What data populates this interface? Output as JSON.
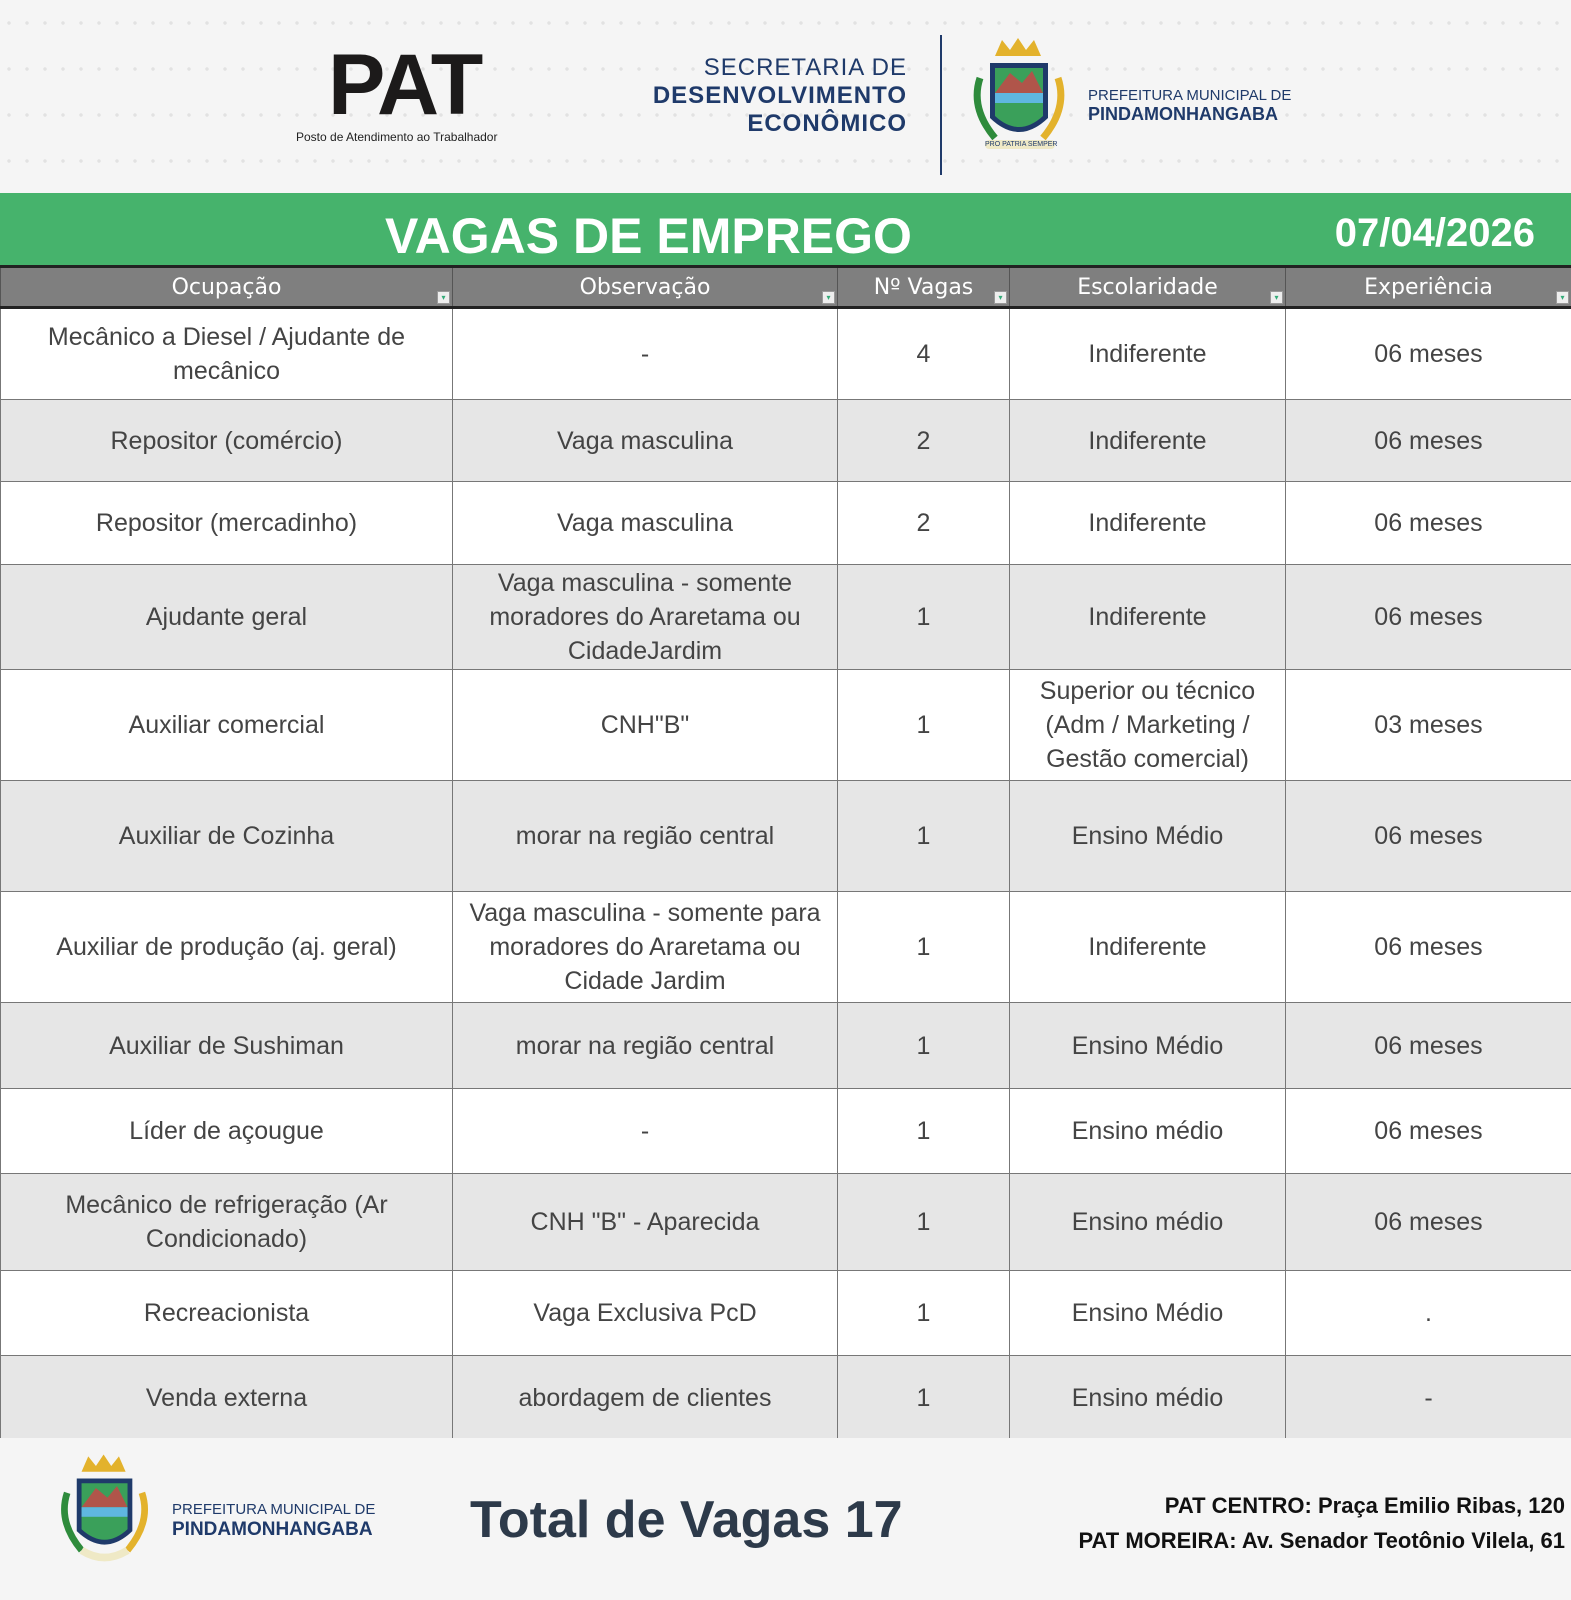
{
  "header": {
    "watermark": "Posto de Atendimento ao Trabalhador",
    "pat_logo": "PAT",
    "pat_subtitle": "Posto de Atendimento ao Trabalhador",
    "secretaria_line1": "SECRETARIA DE",
    "secretaria_line2": "DESENVOLVIMENTO",
    "secretaria_line3": "ECONÔMICO",
    "prefeitura_line1": "PREFEITURA MUNICIPAL DE",
    "prefeitura_line2": "PINDAMONHANGABA",
    "crest_motto": "PRO PATRIA SEMPER"
  },
  "banner": {
    "title": "VAGAS DE EMPREGO",
    "date": "07/04/2026",
    "color": "#46b36c"
  },
  "table": {
    "columns": [
      "Ocupação",
      "Observação",
      "Nº Vagas",
      "Escolaridade",
      "Experiência"
    ],
    "rows": [
      [
        "Mecânico a Diesel / Ajudante de mecânico",
        "-",
        "4",
        "Indiferente",
        "06 meses"
      ],
      [
        "Repositor (comércio)",
        "Vaga masculina",
        "2",
        "Indiferente",
        "06 meses"
      ],
      [
        "Repositor (mercadinho)",
        "Vaga masculina",
        "2",
        "Indiferente",
        "06 meses"
      ],
      [
        "Ajudante geral",
        "Vaga masculina - somente moradores do Araretama ou CidadeJardim",
        "1",
        "Indiferente",
        "06 meses"
      ],
      [
        "Auxiliar comercial",
        "CNH\"B\"",
        "1",
        "Superior ou técnico (Adm / Marketing / Gestão comercial)",
        "03 meses"
      ],
      [
        "Auxiliar de Cozinha",
        "morar na região central",
        "1",
        "Ensino Médio",
        "06 meses"
      ],
      [
        "Auxiliar de produção (aj. geral)",
        "Vaga masculina - somente para moradores do Araretama ou Cidade Jardim",
        "1",
        "Indiferente",
        "06 meses"
      ],
      [
        "Auxiliar de Sushiman",
        "morar na região central",
        "1",
        "Ensino Médio",
        "06 meses"
      ],
      [
        "Líder de açougue",
        "-",
        "1",
        "Ensino médio",
        "06 meses"
      ],
      [
        "Mecânico de refrigeração (Ar Condicionado)",
        "CNH \"B\" - Aparecida",
        "1",
        "Ensino médio",
        "06 meses"
      ],
      [
        "Recreacionista",
        "Vaga Exclusiva PcD",
        "1",
        "Ensino Médio",
        "."
      ],
      [
        "Venda externa",
        "abordagem de clientes",
        "1",
        "Ensino médio",
        "-"
      ]
    ]
  },
  "footer": {
    "prefeitura_line1": "PREFEITURA MUNICIPAL DE",
    "prefeitura_line2": "PINDAMONHANGABA",
    "total_label": "Total de Vagas",
    "total_value": "17",
    "address1": "PAT CENTRO: Praça Emilio Ribas, 120",
    "address2": "PAT MOREIRA: Av. Senador Teotônio Vilela, 61"
  }
}
